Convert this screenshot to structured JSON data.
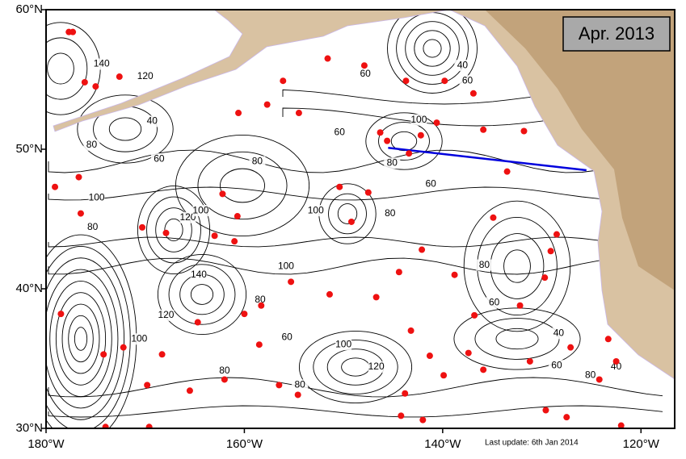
{
  "map": {
    "date_label": "Apr. 2013",
    "footer": "Last update: 6th Jan 2014",
    "xlim": [
      -180,
      -116.6
    ],
    "ylim": [
      30,
      60
    ],
    "xticks": [
      {
        "value": -180,
        "label": "180°W"
      },
      {
        "value": -160,
        "label": "160°W"
      },
      {
        "value": -140,
        "label": "140°W"
      },
      {
        "value": -120,
        "label": "120°W"
      }
    ],
    "yticks": [
      {
        "value": 60,
        "label": "60°N"
      },
      {
        "value": 50,
        "label": "50°N"
      },
      {
        "value": 40,
        "label": "40°N"
      },
      {
        "value": 30,
        "label": "30°N"
      }
    ],
    "section": {
      "color": "#0000dd",
      "lon": [
        -145.5,
        -125.5
      ],
      "lat": [
        50.1,
        48.5
      ]
    },
    "floats": {
      "color": "#ee1111",
      "lon": [
        -177.7,
        -177.3,
        -176.1,
        -172.6,
        -175.0,
        -179.1,
        -176.7,
        -176.5,
        -178.5,
        -174.2,
        -172.2,
        -169.8,
        -169.6,
        -174.0,
        -168.3,
        -167.9,
        -170.3,
        -165.5,
        -164.7,
        -163.0,
        -160.7,
        -162.2,
        -161.0,
        -162.0,
        -160.0,
        -158.3,
        -158.5,
        -155.3,
        -156.5,
        -154.6,
        -151.4,
        -150.4,
        -149.2,
        -147.5,
        -146.3,
        -145.6,
        -143.4,
        -142.2,
        -140.6,
        -143.7,
        -139.8,
        -136.9,
        -135.9,
        -131.8,
        -133.5,
        -134.9,
        -128.5,
        -129.1,
        -129.7,
        -132.2,
        -136.8,
        -138.8,
        -142.1,
        -144.4,
        -146.7,
        -143.2,
        -141.3,
        -139.9,
        -143.8,
        -144.2,
        -142.0,
        -135.9,
        -137.4,
        -131.2,
        -129.6,
        -127.5,
        -127.1,
        -124.2,
        -122.5,
        -122.0,
        -123.3,
        -160.6,
        -157.7,
        -156.1,
        -151.6,
        -147.9,
        -154.5
      ],
      "lat": [
        58.4,
        58.4,
        54.8,
        55.2,
        54.5,
        47.3,
        48.0,
        45.4,
        38.2,
        35.3,
        35.8,
        33.1,
        30.1,
        30.1,
        35.3,
        44.0,
        44.4,
        32.7,
        37.6,
        43.8,
        45.2,
        46.8,
        43.4,
        33.5,
        38.2,
        38.8,
        36.0,
        40.5,
        33.1,
        32.4,
        39.6,
        47.3,
        44.8,
        46.9,
        51.2,
        50.6,
        49.7,
        51.0,
        51.9,
        54.9,
        54.9,
        54.0,
        51.4,
        51.3,
        48.4,
        45.1,
        43.9,
        42.7,
        40.8,
        38.8,
        38.1,
        41.0,
        42.8,
        41.2,
        39.4,
        37.0,
        35.2,
        33.8,
        32.5,
        30.9,
        30.6,
        34.2,
        35.4,
        34.8,
        31.3,
        30.8,
        35.8,
        33.5,
        34.8,
        30.2,
        36.4,
        52.6,
        53.2,
        54.9,
        56.5,
        56.0,
        52.6
      ]
    },
    "contour_labels": [
      140,
      120,
      40,
      60,
      80,
      100,
      80,
      120,
      100,
      140,
      120,
      100,
      80,
      60,
      80,
      100,
      100,
      80,
      60,
      60,
      100,
      80,
      60,
      80,
      80,
      60,
      40,
      60,
      100,
      120,
      80,
      40,
      60,
      40,
      80
    ]
  }
}
